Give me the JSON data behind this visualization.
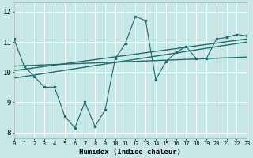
{
  "title": "",
  "xlabel": "Humidex (Indice chaleur)",
  "xlim": [
    0,
    23
  ],
  "ylim": [
    7.8,
    12.3
  ],
  "xticks": [
    0,
    1,
    2,
    3,
    4,
    5,
    6,
    7,
    8,
    9,
    10,
    11,
    12,
    13,
    14,
    15,
    16,
    17,
    18,
    19,
    20,
    21,
    22,
    23
  ],
  "yticks": [
    8,
    9,
    10,
    11,
    12
  ],
  "bg_color": "#c8e8e8",
  "line_color": "#1e6b6b",
  "series1_x": [
    0,
    1,
    2,
    3,
    4,
    5,
    6,
    7,
    8,
    9,
    10,
    11,
    12,
    13,
    14,
    15,
    16,
    17,
    18,
    19,
    20,
    21,
    22,
    23
  ],
  "series1_y": [
    11.1,
    10.2,
    9.85,
    9.5,
    9.5,
    8.55,
    8.15,
    9.0,
    8.2,
    8.75,
    10.45,
    10.95,
    11.85,
    11.7,
    9.75,
    10.35,
    10.65,
    10.85,
    10.45,
    10.45,
    11.1,
    11.15,
    11.25,
    11.2
  ],
  "trend1_x": [
    0,
    23
  ],
  "trend1_y": [
    10.2,
    10.5
  ],
  "trend2_x": [
    0,
    23
  ],
  "trend2_y": [
    10.05,
    11.1
  ],
  "trend3_x": [
    0,
    23
  ],
  "trend3_y": [
    9.8,
    11.0
  ]
}
